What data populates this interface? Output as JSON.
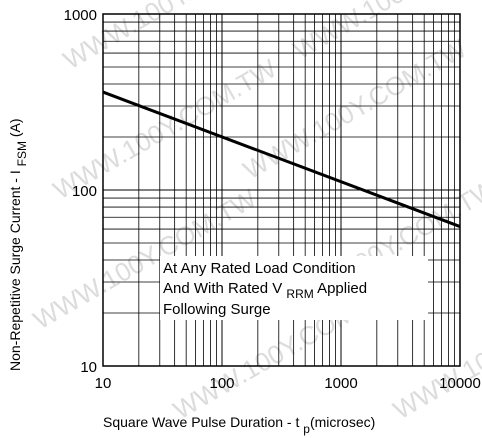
{
  "chart_data": {
    "type": "line",
    "x_scale": "log",
    "y_scale": "log",
    "xlim": [
      10,
      10000
    ],
    "ylim": [
      10,
      1000
    ],
    "x_ticks": [
      {
        "value": 10,
        "label": "10"
      },
      {
        "value": 100,
        "label": "100"
      },
      {
        "value": 1000,
        "label": "1000"
      },
      {
        "value": 10000,
        "label": "10000"
      }
    ],
    "y_ticks": [
      {
        "value": 10,
        "label": "10"
      },
      {
        "value": 100,
        "label": "100"
      },
      {
        "value": 1000,
        "label": "1000"
      }
    ],
    "xlabel": {
      "main": "Square Wave Pulse Duration - t ",
      "sub": "p",
      "tail": "(microsec)"
    },
    "ylabel": {
      "main": "Non-Repetitive Surge Current - I ",
      "sub": "FSM",
      "tail": " (A)"
    },
    "grid": true,
    "series": [
      {
        "x": [
          10,
          10000
        ],
        "y": [
          360,
          62
        ]
      }
    ],
    "annotation": {
      "line1": "At Any Rated Load Condition",
      "line2_main": "And With Rated V ",
      "line2_sub": "RRM",
      "line2_tail": " Applied",
      "line3": "Following Surge"
    },
    "watermark": "WWW.100Y.COM.TW"
  }
}
